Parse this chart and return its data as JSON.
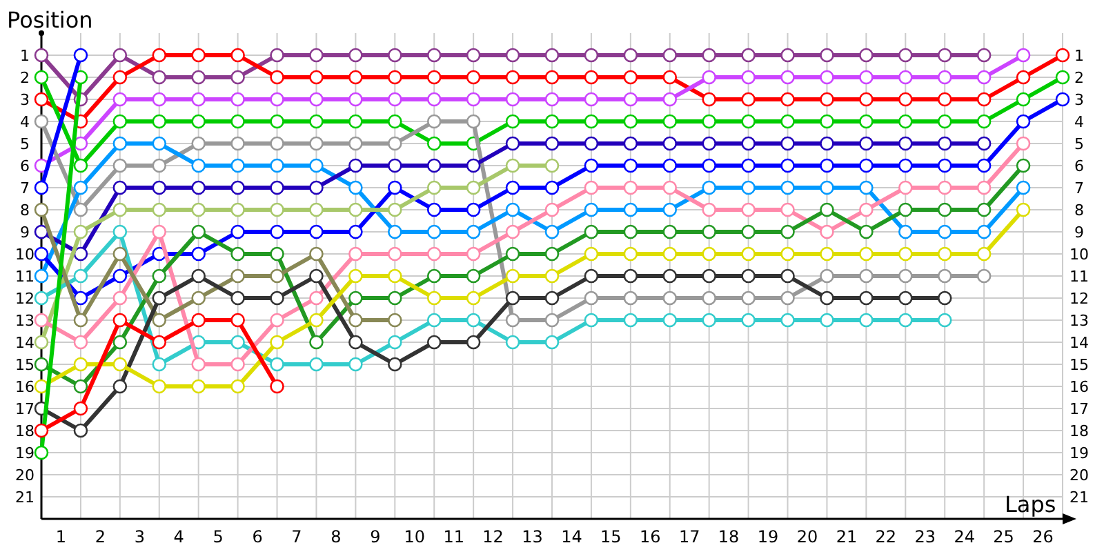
{
  "chart_data": {
    "type": "line",
    "xlabel": "Laps",
    "ylabel": "Position",
    "x": [
      0,
      1,
      2,
      3,
      4,
      5,
      6,
      7,
      8,
      9,
      10,
      11,
      12,
      13,
      14,
      15,
      16,
      17,
      18,
      19,
      20,
      21,
      22,
      23,
      24,
      25,
      26
    ],
    "xlim": [
      0,
      26
    ],
    "xticks": [
      {
        "value": 0.5,
        "label": "1"
      },
      {
        "value": 1.5,
        "label": "2"
      },
      {
        "value": 2.5,
        "label": "3"
      },
      {
        "value": 3.5,
        "label": "4"
      },
      {
        "value": 4.5,
        "label": "5"
      },
      {
        "value": 5.5,
        "label": "6"
      },
      {
        "value": 6.5,
        "label": "7"
      },
      {
        "value": 7.5,
        "label": "8"
      },
      {
        "value": 8.5,
        "label": "9"
      },
      {
        "value": 9.5,
        "label": "10"
      },
      {
        "value": 10.5,
        "label": "11"
      },
      {
        "value": 11.5,
        "label": "12"
      },
      {
        "value": 12.5,
        "label": "13"
      },
      {
        "value": 13.5,
        "label": "14"
      },
      {
        "value": 14.5,
        "label": "15"
      },
      {
        "value": 15.5,
        "label": "16"
      },
      {
        "value": 16.5,
        "label": "17"
      },
      {
        "value": 17.5,
        "label": "18"
      },
      {
        "value": 18.5,
        "label": "19"
      },
      {
        "value": 19.5,
        "label": "20"
      },
      {
        "value": 20.5,
        "label": "21"
      },
      {
        "value": 21.5,
        "label": "22"
      },
      {
        "value": 22.5,
        "label": "23"
      },
      {
        "value": 23.5,
        "label": "24"
      },
      {
        "value": 24.5,
        "label": "25"
      },
      {
        "value": 25.5,
        "label": "26"
      },
      {
        "value": 1,
        "label": null
      },
      {
        "value": 2,
        "label": null
      },
      {
        "value": 3,
        "label": null
      },
      {
        "value": 4,
        "label": null
      },
      {
        "value": 5,
        "label": null
      },
      {
        "value": 6,
        "label": null
      },
      {
        "value": 7,
        "label": null
      },
      {
        "value": 8,
        "label": null
      },
      {
        "value": 9,
        "label": null
      },
      {
        "value": 10,
        "label": null
      },
      {
        "value": 11,
        "label": null
      },
      {
        "value": 12,
        "label": null
      },
      {
        "value": 13,
        "label": null
      },
      {
        "value": 14,
        "label": null
      },
      {
        "value": 15,
        "label": null
      },
      {
        "value": 16,
        "label": null
      },
      {
        "value": 17,
        "label": null
      },
      {
        "value": 18,
        "label": null
      },
      {
        "value": 19,
        "label": null
      },
      {
        "value": 20,
        "label": null
      },
      {
        "value": 21,
        "label": null
      },
      {
        "value": 22,
        "label": null
      },
      {
        "value": 23,
        "label": null
      },
      {
        "value": 24,
        "label": null
      },
      {
        "value": 25,
        "label": null
      },
      {
        "value": 26,
        "label": null
      }
    ],
    "ylim": [
      22,
      0
    ],
    "yticks": [
      1,
      2,
      3,
      4,
      5,
      6,
      7,
      8,
      9,
      10,
      11,
      12,
      13,
      14,
      15,
      16,
      17,
      18,
      19,
      20,
      21
    ],
    "y2lim": [
      22,
      0
    ],
    "y2ticks": [
      1,
      2,
      3,
      4,
      5,
      6,
      7,
      8,
      9,
      10,
      11,
      12,
      13,
      14,
      15,
      16,
      17,
      18,
      19,
      20,
      21
    ],
    "grid": true,
    "marker": "circle",
    "line_style": "solid",
    "series": [
      {
        "color": "#8b3a8f",
        "values": [
          1,
          3,
          1,
          2,
          2,
          2,
          1,
          1,
          1,
          1,
          1,
          1,
          1,
          1,
          1,
          1,
          1,
          1,
          1,
          1,
          1,
          1,
          1,
          1,
          1,
          null,
          null
        ]
      },
      {
        "color": "#ff0000",
        "values": [
          3,
          4,
          2,
          1,
          1,
          1,
          2,
          2,
          2,
          2,
          2,
          2,
          2,
          2,
          2,
          2,
          2,
          3,
          3,
          3,
          3,
          3,
          3,
          3,
          3,
          2,
          1
        ]
      },
      {
        "color": "#cc44ff",
        "values": [
          6,
          5,
          3,
          3,
          3,
          3,
          3,
          3,
          3,
          3,
          3,
          3,
          3,
          3,
          3,
          3,
          3,
          2,
          2,
          2,
          2,
          2,
          2,
          2,
          2,
          1,
          null
        ]
      },
      {
        "color": "#00cc00",
        "values": [
          2,
          6,
          4,
          4,
          4,
          4,
          4,
          4,
          4,
          4,
          5,
          5,
          4,
          4,
          4,
          4,
          4,
          4,
          4,
          4,
          4,
          4,
          4,
          4,
          4,
          3,
          2
        ]
      },
      {
        "color": "#999999",
        "values": [
          4,
          8,
          6,
          6,
          5,
          5,
          5,
          5,
          5,
          5,
          4,
          4,
          13,
          13,
          12,
          12,
          12,
          12,
          12,
          12,
          11,
          11,
          11,
          11,
          11,
          null,
          null
        ]
      },
      {
        "color": "#0099ff",
        "values": [
          11,
          7,
          5,
          5,
          6,
          6,
          6,
          6,
          7,
          9,
          9,
          9,
          8,
          9,
          8,
          8,
          8,
          7,
          7,
          7,
          7,
          7,
          9,
          9,
          9,
          7,
          null
        ]
      },
      {
        "color": "#2200bb",
        "values": [
          9,
          10,
          7,
          7,
          7,
          7,
          7,
          7,
          6,
          6,
          6,
          6,
          5,
          5,
          5,
          5,
          5,
          5,
          5,
          5,
          5,
          5,
          5,
          5,
          5,
          null,
          null
        ]
      },
      {
        "color": "#0000ff",
        "values": [
          10,
          12,
          11,
          10,
          10,
          9,
          9,
          9,
          9,
          7,
          8,
          8,
          7,
          7,
          6,
          6,
          6,
          6,
          6,
          6,
          6,
          6,
          6,
          6,
          6,
          4,
          3
        ]
      },
      {
        "color": "#a8c86a",
        "values": [
          14,
          9,
          8,
          8,
          8,
          8,
          8,
          8,
          8,
          8,
          7,
          7,
          6,
          6,
          null,
          null,
          null,
          null,
          null,
          null,
          null,
          null,
          null,
          null,
          null,
          null,
          null
        ]
      },
      {
        "color": "#33cccc",
        "values": [
          12,
          11,
          9,
          15,
          14,
          14,
          15,
          15,
          15,
          14,
          13,
          13,
          14,
          14,
          13,
          13,
          13,
          13,
          13,
          13,
          13,
          13,
          13,
          13,
          null,
          null,
          null
        ]
      },
      {
        "color": "#ff88aa",
        "values": [
          13,
          14,
          12,
          9,
          15,
          15,
          13,
          12,
          10,
          10,
          10,
          10,
          9,
          8,
          7,
          7,
          7,
          8,
          8,
          8,
          9,
          8,
          7,
          7,
          7,
          5,
          null
        ]
      },
      {
        "color": "#229922",
        "values": [
          15,
          16,
          14,
          11,
          9,
          10,
          10,
          14,
          12,
          12,
          11,
          11,
          10,
          10,
          9,
          9,
          9,
          9,
          9,
          9,
          8,
          9,
          8,
          8,
          8,
          6,
          null
        ]
      },
      {
        "color": "#888855",
        "values": [
          8,
          13,
          10,
          13,
          12,
          11,
          11,
          10,
          13,
          13,
          null,
          null,
          null,
          null,
          null,
          null,
          null,
          null,
          null,
          null,
          null,
          null,
          null,
          null,
          null,
          null,
          null
        ]
      },
      {
        "color": "#333333",
        "values": [
          17,
          18,
          16,
          12,
          11,
          12,
          12,
          11,
          14,
          15,
          14,
          14,
          12,
          12,
          11,
          11,
          11,
          11,
          11,
          11,
          12,
          12,
          12,
          12,
          null,
          null,
          null
        ]
      },
      {
        "color": "#dddd00",
        "values": [
          16,
          15,
          15,
          16,
          16,
          16,
          14,
          13,
          11,
          11,
          12,
          12,
          11,
          11,
          10,
          10,
          10,
          10,
          10,
          10,
          10,
          10,
          10,
          10,
          10,
          8,
          null
        ]
      },
      {
        "color": "#00cc00",
        "values": [
          19,
          2,
          null,
          null,
          null,
          null,
          null,
          null,
          null,
          null,
          null,
          null,
          null,
          null,
          null,
          null,
          null,
          null,
          null,
          null,
          null,
          null,
          null,
          null,
          null,
          null,
          null
        ]
      },
      {
        "color": "#0000ff",
        "values": [
          7,
          1,
          null,
          null,
          null,
          null,
          null,
          null,
          null,
          null,
          null,
          null,
          null,
          null,
          null,
          null,
          null,
          null,
          null,
          null,
          null,
          null,
          null,
          null,
          null,
          null,
          null
        ]
      },
      {
        "color": "#ff0000",
        "values": [
          18,
          17,
          13,
          14,
          13,
          13,
          16,
          null,
          null,
          null,
          null,
          null,
          null,
          null,
          null,
          null,
          null,
          null,
          null,
          null,
          null,
          null,
          null,
          null,
          null,
          null,
          null
        ]
      }
    ]
  }
}
